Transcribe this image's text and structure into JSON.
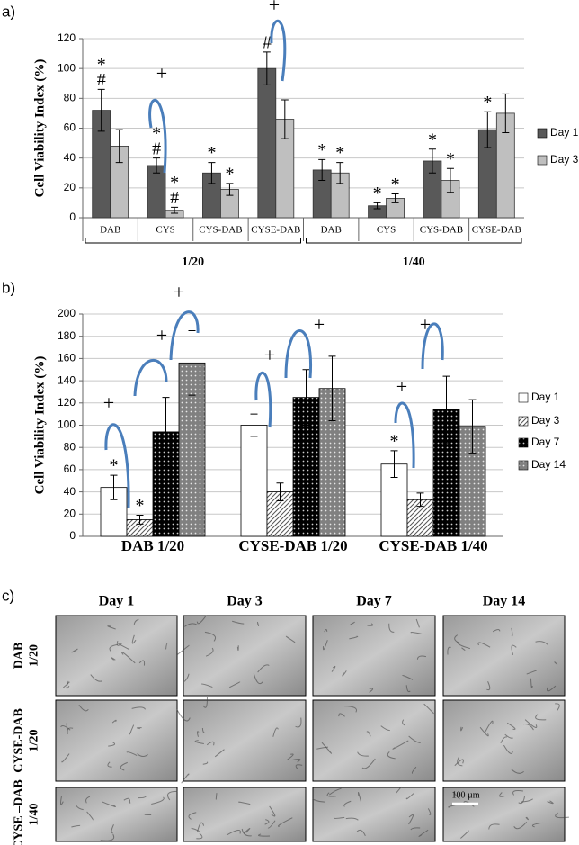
{
  "panel_labels": [
    "a)",
    "b)",
    "c)"
  ],
  "chart_data": [
    {
      "type": "bar",
      "y_label": "Cell Viability Index (%)",
      "categories": [
        "DAB",
        "CYS",
        "CYS-DAB",
        "CYSE-DAB",
        "DAB",
        "CYS",
        "CYS-DAB",
        "CYSE-DAB"
      ],
      "category_groups": [
        "1/20",
        "1/40"
      ],
      "series": [
        {
          "name": "Day 1",
          "color": "#595959",
          "pattern": "solid",
          "values": [
            72,
            35,
            30,
            100,
            32,
            8,
            38,
            59
          ],
          "errors": [
            14,
            5,
            7,
            11,
            7,
            2,
            8,
            12
          ],
          "annotations": [
            [
              "*",
              "#"
            ],
            [
              "*",
              "#"
            ],
            [
              "*"
            ],
            [
              "#"
            ],
            [
              "*"
            ],
            [
              "*"
            ],
            [
              "*"
            ],
            [
              "*"
            ]
          ]
        },
        {
          "name": "Day 3",
          "color": "#bfbfbf",
          "pattern": "solid",
          "values": [
            48,
            5,
            19,
            66,
            30,
            13,
            25,
            70
          ],
          "errors": [
            11,
            2,
            4,
            13,
            7,
            3,
            8,
            13
          ],
          "annotations": [
            [],
            [
              "*",
              "#"
            ],
            [
              "*"
            ],
            [],
            [
              "*"
            ],
            [
              "*"
            ],
            [
              "*"
            ],
            []
          ]
        }
      ],
      "significance": [
        "+",
        "+"
      ],
      "ylim": [
        0,
        120
      ],
      "yticks": [
        0,
        20,
        40,
        60,
        80,
        100,
        120
      ],
      "grid": true,
      "legend": "right"
    },
    {
      "type": "bar",
      "y_label": "Cell Viability Index (%)",
      "categories": [
        "DAB 1/20",
        "CYSE-DAB 1/20",
        "CYSE-DAB 1/40"
      ],
      "series": [
        {
          "name": "Day 1",
          "color": "#ffffff",
          "pattern": "solid",
          "values": [
            44,
            100,
            65
          ],
          "errors": [
            11,
            10,
            12
          ],
          "annotations": [
            [
              "*"
            ],
            [],
            [
              "*"
            ]
          ]
        },
        {
          "name": "Day 3",
          "color": "#ffffff",
          "pattern": "diagonal",
          "values": [
            15,
            40,
            33
          ],
          "errors": [
            4,
            8,
            6
          ],
          "annotations": [
            [
              "*"
            ],
            [],
            []
          ]
        },
        {
          "name": "Day 7",
          "color": "#000000",
          "pattern": "dots",
          "values": [
            94,
            125,
            114
          ],
          "errors": [
            31,
            25,
            30
          ],
          "annotations": [
            [],
            [],
            []
          ]
        },
        {
          "name": "Day 14",
          "color": "#808080",
          "pattern": "dots",
          "values": [
            156,
            133,
            99
          ],
          "errors": [
            29,
            29,
            24
          ],
          "annotations": [
            [],
            [],
            []
          ]
        }
      ],
      "significance": [
        "+",
        "+",
        "+",
        "+",
        "+",
        "+",
        "+"
      ],
      "ylim": [
        0,
        200
      ],
      "yticks": [
        0,
        20,
        40,
        60,
        80,
        100,
        120,
        140,
        160,
        180,
        200
      ],
      "grid": true,
      "legend": "right"
    }
  ],
  "micrographs": {
    "columns": [
      "Day 1",
      "Day 3",
      "Day 7",
      "Day 14"
    ],
    "rows": [
      [
        "DAB",
        "1/20"
      ],
      [
        "CYSE-DAB",
        "1/20"
      ],
      [
        "CYSE –DAB",
        "1/40"
      ]
    ],
    "scale_bar": "100 µm"
  }
}
